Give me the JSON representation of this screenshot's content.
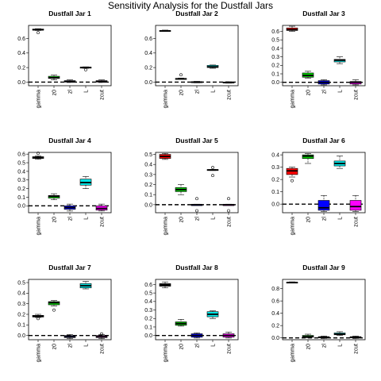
{
  "title": "Sensitivity Analysis for the Dustfall Jars",
  "categories": [
    "gamma",
    "z0",
    "zl",
    "L",
    "zcut"
  ],
  "colors": [
    "#ff0000",
    "#00cc00",
    "#0000ff",
    "#00e5e5",
    "#ff00ff"
  ],
  "chart_data": [
    {
      "type": "boxplot",
      "title": "Dustfall Jar 1",
      "ylim": [
        -0.05,
        0.78
      ],
      "yticks": [
        "0.0",
        "0.2",
        "0.4",
        "0.6"
      ],
      "reference_line": 0,
      "box_colors": [
        "#000000",
        "#00cc00",
        "#0000ff",
        "#00e5e5",
        "#ff00ff"
      ],
      "boxes": [
        {
          "category": "gamma",
          "whisker_low": 0.71,
          "q1": 0.715,
          "median": 0.72,
          "q3": 0.73,
          "whisker_high": 0.735,
          "outliers": [
            0.68
          ]
        },
        {
          "category": "z0",
          "whisker_low": 0.03,
          "q1": 0.05,
          "median": 0.06,
          "q3": 0.08,
          "whisker_high": 0.095,
          "outliers": []
        },
        {
          "category": "zl",
          "whisker_low": -0.005,
          "q1": 0.0,
          "median": 0.01,
          "q3": 0.02,
          "whisker_high": 0.03,
          "outliers": []
        },
        {
          "category": "L",
          "whisker_low": 0.19,
          "q1": 0.195,
          "median": 0.2,
          "q3": 0.205,
          "whisker_high": 0.21,
          "outliers": [
            0.17
          ]
        },
        {
          "category": "zcut",
          "whisker_low": -0.005,
          "q1": 0.0,
          "median": 0.01,
          "q3": 0.02,
          "whisker_high": 0.03,
          "outliers": []
        }
      ]
    },
    {
      "type": "boxplot",
      "title": "Dustfall Jar 2",
      "ylim": [
        -0.05,
        0.78
      ],
      "yticks": [
        "0.0",
        "0.2",
        "0.4",
        "0.6"
      ],
      "reference_line": 0,
      "box_colors": [
        "#000000",
        "#00cc00",
        "#0000ff",
        "#00e5e5",
        "#ff00ff"
      ],
      "boxes": [
        {
          "category": "gamma",
          "whisker_low": 0.7,
          "q1": 0.7,
          "median": 0.705,
          "q3": 0.71,
          "whisker_high": 0.715,
          "outliers": []
        },
        {
          "category": "z0",
          "whisker_low": 0.04,
          "q1": 0.04,
          "median": 0.045,
          "q3": 0.05,
          "whisker_high": 0.055,
          "outliers": [
            0.1
          ]
        },
        {
          "category": "zl",
          "whisker_low": -0.01,
          "q1": -0.005,
          "median": 0.0,
          "q3": 0.005,
          "whisker_high": 0.01,
          "outliers": []
        },
        {
          "category": "L",
          "whisker_low": 0.19,
          "q1": 0.2,
          "median": 0.21,
          "q3": 0.23,
          "whisker_high": 0.235,
          "outliers": []
        },
        {
          "category": "zcut",
          "whisker_low": -0.015,
          "q1": -0.01,
          "median": -0.005,
          "q3": 0.0,
          "whisker_high": 0.005,
          "outliers": []
        }
      ]
    },
    {
      "type": "boxplot",
      "title": "Dustfall Jar 3",
      "ylim": [
        -0.04,
        0.67
      ],
      "yticks": [
        "0.0",
        "0.1",
        "0.2",
        "0.3",
        "0.4",
        "0.5",
        "0.6"
      ],
      "reference_line": 0,
      "box_colors": [
        "#ff0000",
        "#00cc00",
        "#0000ff",
        "#00e5e5",
        "#ff00ff"
      ],
      "boxes": [
        {
          "category": "gamma",
          "whisker_low": 0.6,
          "q1": 0.61,
          "median": 0.62,
          "q3": 0.64,
          "whisker_high": 0.66,
          "outliers": []
        },
        {
          "category": "z0",
          "whisker_low": 0.05,
          "q1": 0.06,
          "median": 0.08,
          "q3": 0.11,
          "whisker_high": 0.13,
          "outliers": []
        },
        {
          "category": "zl",
          "whisker_low": -0.03,
          "q1": -0.02,
          "median": 0.0,
          "q3": 0.02,
          "whisker_high": 0.03,
          "outliers": []
        },
        {
          "category": "L",
          "whisker_low": 0.22,
          "q1": 0.24,
          "median": 0.26,
          "q3": 0.27,
          "whisker_high": 0.3,
          "outliers": []
        },
        {
          "category": "zcut",
          "whisker_low": -0.03,
          "q1": -0.02,
          "median": 0.0,
          "q3": 0.01,
          "whisker_high": 0.03,
          "outliers": []
        }
      ]
    },
    {
      "type": "boxplot",
      "title": "Dustfall Jar 4",
      "ylim": [
        -0.08,
        0.62
      ],
      "yticks": [
        "0.0",
        "0.1",
        "0.2",
        "0.3",
        "0.4",
        "0.5",
        "0.6"
      ],
      "reference_line": 0,
      "box_colors": [
        "#000000",
        "#00cc00",
        "#0000ff",
        "#00e5e5",
        "#ff00ff"
      ],
      "boxes": [
        {
          "category": "gamma",
          "whisker_low": 0.54,
          "q1": 0.55,
          "median": 0.56,
          "q3": 0.57,
          "whisker_high": 0.58,
          "outliers": [
            0.61
          ]
        },
        {
          "category": "z0",
          "whisker_low": 0.07,
          "q1": 0.09,
          "median": 0.11,
          "q3": 0.12,
          "whisker_high": 0.14,
          "outliers": []
        },
        {
          "category": "zl",
          "whisker_low": -0.06,
          "q1": -0.04,
          "median": -0.02,
          "q3": 0.0,
          "whisker_high": 0.02,
          "outliers": []
        },
        {
          "category": "L",
          "whisker_low": 0.2,
          "q1": 0.24,
          "median": 0.27,
          "q3": 0.31,
          "whisker_high": 0.34,
          "outliers": []
        },
        {
          "category": "zcut",
          "whisker_low": -0.06,
          "q1": -0.05,
          "median": -0.03,
          "q3": 0.0,
          "whisker_high": 0.02,
          "outliers": []
        }
      ]
    },
    {
      "type": "boxplot",
      "title": "Dustfall Jar 5",
      "ylim": [
        -0.08,
        0.52
      ],
      "yticks": [
        "0.0",
        "0.1",
        "0.2",
        "0.3",
        "0.4",
        "0.5"
      ],
      "reference_line": 0,
      "box_colors": [
        "#ff0000",
        "#00cc00",
        "#0000ff",
        "#00e5e5",
        "#ff00ff"
      ],
      "boxes": [
        {
          "category": "gamma",
          "whisker_low": 0.45,
          "q1": 0.46,
          "median": 0.48,
          "q3": 0.5,
          "whisker_high": 0.51,
          "outliers": []
        },
        {
          "category": "z0",
          "whisker_low": 0.1,
          "q1": 0.13,
          "median": 0.15,
          "q3": 0.17,
          "whisker_high": 0.2,
          "outliers": []
        },
        {
          "category": "zl",
          "whisker_low": -0.005,
          "q1": -0.005,
          "median": 0.0,
          "q3": 0.0,
          "whisker_high": 0.005,
          "outliers": [
            0.06,
            -0.06
          ]
        },
        {
          "category": "L",
          "whisker_low": 0.34,
          "q1": 0.34,
          "median": 0.345,
          "q3": 0.35,
          "whisker_high": 0.35,
          "outliers": [
            0.37,
            0.29
          ]
        },
        {
          "category": "zcut",
          "whisker_low": -0.005,
          "q1": -0.005,
          "median": 0.0,
          "q3": 0.0,
          "whisker_high": 0.005,
          "outliers": [
            0.06,
            -0.06
          ]
        }
      ]
    },
    {
      "type": "boxplot",
      "title": "Dustfall Jar 6",
      "ylim": [
        -0.07,
        0.42
      ],
      "yticks": [
        "0.0",
        "0.1",
        "0.2",
        "0.3",
        "0.4"
      ],
      "reference_line": 0,
      "box_colors": [
        "#ff0000",
        "#00cc00",
        "#0000ff",
        "#00e5e5",
        "#ff00ff"
      ],
      "boxes": [
        {
          "category": "gamma",
          "whisker_low": 0.22,
          "q1": 0.24,
          "median": 0.27,
          "q3": 0.29,
          "whisker_high": 0.3,
          "outliers": [
            0.19
          ]
        },
        {
          "category": "z0",
          "whisker_low": 0.33,
          "q1": 0.37,
          "median": 0.39,
          "q3": 0.4,
          "whisker_high": 0.41,
          "outliers": []
        },
        {
          "category": "zl",
          "whisker_low": -0.06,
          "q1": -0.05,
          "median": -0.03,
          "q3": 0.03,
          "whisker_high": 0.07,
          "outliers": []
        },
        {
          "category": "L",
          "whisker_low": 0.29,
          "q1": 0.31,
          "median": 0.33,
          "q3": 0.35,
          "whisker_high": 0.39,
          "outliers": []
        },
        {
          "category": "zcut",
          "whisker_low": -0.06,
          "q1": -0.05,
          "median": -0.02,
          "q3": 0.03,
          "whisker_high": 0.07,
          "outliers": []
        }
      ]
    },
    {
      "type": "boxplot",
      "title": "Dustfall Jar 7",
      "ylim": [
        -0.04,
        0.53
      ],
      "yticks": [
        "0.0",
        "0.1",
        "0.2",
        "0.3",
        "0.4",
        "0.5"
      ],
      "reference_line": 0,
      "box_colors": [
        "#000000",
        "#00cc00",
        "#0000ff",
        "#00e5e5",
        "#ff00ff"
      ],
      "boxes": [
        {
          "category": "gamma",
          "whisker_low": 0.17,
          "q1": 0.175,
          "median": 0.18,
          "q3": 0.19,
          "whisker_high": 0.2,
          "outliers": [
            0.16
          ]
        },
        {
          "category": "z0",
          "whisker_low": 0.28,
          "q1": 0.29,
          "median": 0.31,
          "q3": 0.32,
          "whisker_high": 0.33,
          "outliers": [
            0.24
          ]
        },
        {
          "category": "zl",
          "whisker_low": -0.03,
          "q1": -0.02,
          "median": -0.01,
          "q3": 0.0,
          "whisker_high": 0.01,
          "outliers": []
        },
        {
          "category": "L",
          "whisker_low": 0.44,
          "q1": 0.45,
          "median": 0.47,
          "q3": 0.49,
          "whisker_high": 0.51,
          "outliers": []
        },
        {
          "category": "zcut",
          "whisker_low": -0.03,
          "q1": -0.02,
          "median": -0.01,
          "q3": 0.0,
          "whisker_high": 0.01,
          "outliers": [
            0.015
          ]
        }
      ]
    },
    {
      "type": "boxplot",
      "title": "Dustfall Jar 8",
      "ylim": [
        -0.05,
        0.66
      ],
      "yticks": [
        "0.0",
        "0.1",
        "0.2",
        "0.3",
        "0.4",
        "0.5",
        "0.6"
      ],
      "reference_line": 0,
      "box_colors": [
        "#000000",
        "#00cc00",
        "#0000ff",
        "#00e5e5",
        "#ff00ff"
      ],
      "boxes": [
        {
          "category": "gamma",
          "whisker_low": 0.56,
          "q1": 0.58,
          "median": 0.6,
          "q3": 0.61,
          "whisker_high": 0.63,
          "outliers": []
        },
        {
          "category": "z0",
          "whisker_low": 0.11,
          "q1": 0.12,
          "median": 0.14,
          "q3": 0.16,
          "whisker_high": 0.19,
          "outliers": []
        },
        {
          "category": "zl",
          "whisker_low": -0.03,
          "q1": -0.02,
          "median": 0.0,
          "q3": 0.02,
          "whisker_high": 0.03,
          "outliers": []
        },
        {
          "category": "L",
          "whisker_low": 0.2,
          "q1": 0.22,
          "median": 0.25,
          "q3": 0.28,
          "whisker_high": 0.29,
          "outliers": []
        },
        {
          "category": "zcut",
          "whisker_low": -0.03,
          "q1": -0.02,
          "median": 0.0,
          "q3": 0.02,
          "whisker_high": 0.04,
          "outliers": []
        }
      ]
    },
    {
      "type": "boxplot",
      "title": "Dustfall Jar 9",
      "ylim": [
        -0.03,
        0.95
      ],
      "yticks": [
        "0.0",
        "0.2",
        "0.4",
        "0.6",
        "0.8"
      ],
      "reference_line": 0,
      "box_colors": [
        "#000000",
        "#00cc00",
        "#0000ff",
        "#00e5e5",
        "#ff00ff"
      ],
      "boxes": [
        {
          "category": "gamma",
          "whisker_low": 0.89,
          "q1": 0.895,
          "median": 0.9,
          "q3": 0.905,
          "whisker_high": 0.91,
          "outliers": []
        },
        {
          "category": "z0",
          "whisker_low": 0.0,
          "q1": 0.01,
          "median": 0.02,
          "q3": 0.04,
          "whisker_high": 0.06,
          "outliers": []
        },
        {
          "category": "zl",
          "whisker_low": -0.01,
          "q1": 0.0,
          "median": 0.01,
          "q3": 0.02,
          "whisker_high": 0.03,
          "outliers": []
        },
        {
          "category": "L",
          "whisker_low": 0.04,
          "q1": 0.05,
          "median": 0.06,
          "q3": 0.08,
          "whisker_high": 0.1,
          "outliers": []
        },
        {
          "category": "zcut",
          "whisker_low": -0.01,
          "q1": 0.0,
          "median": 0.01,
          "q3": 0.02,
          "whisker_high": 0.03,
          "outliers": []
        }
      ]
    }
  ]
}
